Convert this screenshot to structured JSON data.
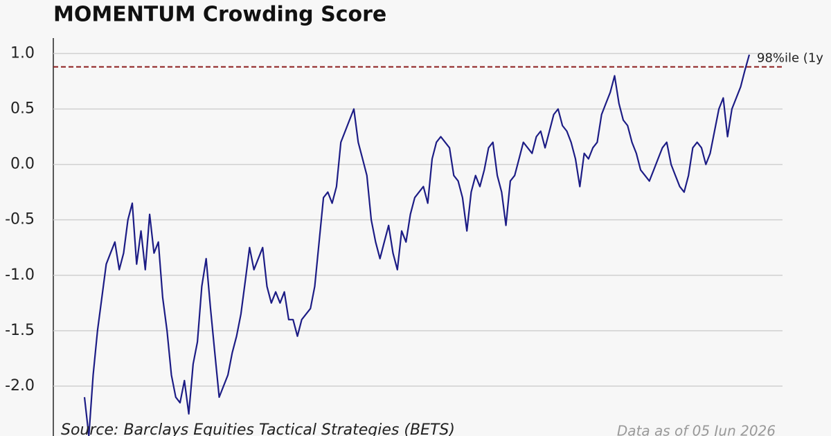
{
  "chart_data": {
    "type": "line",
    "title": "MOMENTUM Crowding Score",
    "series": [
      {
        "name": null,
        "color": "#1c1c85",
        "values": [
          -2.1,
          -2.45,
          -1.9,
          -1.5,
          -1.2,
          -0.9,
          -0.8,
          -0.7,
          -0.95,
          -0.8,
          -0.5,
          -0.35,
          -0.9,
          -0.6,
          -0.95,
          -0.45,
          -0.8,
          -0.7,
          -1.2,
          -1.5,
          -1.9,
          -2.1,
          -2.15,
          -1.95,
          -2.25,
          -1.8,
          -1.6,
          -1.1,
          -0.85,
          -1.3,
          -1.7,
          -2.1,
          -2.0,
          -1.9,
          -1.7,
          -1.55,
          -1.35,
          -1.05,
          -0.75,
          -0.95,
          -0.85,
          -0.75,
          -1.1,
          -1.25,
          -1.15,
          -1.25,
          -1.15,
          -1.4,
          -1.4,
          -1.55,
          -1.4,
          -1.35,
          -1.3,
          -1.1,
          -0.7,
          -0.3,
          -0.25,
          -0.35,
          -0.2,
          0.2,
          0.3,
          0.4,
          0.5,
          0.2,
          0.05,
          -0.1,
          -0.5,
          -0.7,
          -0.85,
          -0.7,
          -0.55,
          -0.8,
          -0.95,
          -0.6,
          -0.7,
          -0.45,
          -0.3,
          -0.25,
          -0.2,
          -0.35,
          0.05,
          0.2,
          0.25,
          0.2,
          0.15,
          -0.1,
          -0.15,
          -0.3,
          -0.6,
          -0.25,
          -0.1,
          -0.2,
          -0.05,
          0.15,
          0.2,
          -0.1,
          -0.25,
          -0.55,
          -0.15,
          -0.1,
          0.05,
          0.2,
          0.15,
          0.1,
          0.25,
          0.3,
          0.15,
          0.3,
          0.45,
          0.5,
          0.35,
          0.3,
          0.2,
          0.05,
          -0.2,
          0.1,
          0.05,
          0.15,
          0.2,
          0.45,
          0.55,
          0.65,
          0.8,
          0.55,
          0.4,
          0.35,
          0.2,
          0.1,
          -0.05,
          -0.1,
          -0.15,
          -0.05,
          0.05,
          0.15,
          0.2,
          0.0,
          -0.1,
          -0.2,
          -0.25,
          -0.1,
          0.15,
          0.2,
          0.15,
          0.0,
          0.1,
          0.3,
          0.5,
          0.6,
          0.25,
          0.5,
          0.6,
          0.7,
          0.85,
          0.99
        ]
      }
    ],
    "ylim": [
      -2.45,
      1.14
    ],
    "yticks": [
      {
        "value": 1,
        "label": "1.0"
      },
      {
        "value": 0.5,
        "label": "0.5"
      },
      {
        "value": 0,
        "label": "0.0"
      },
      {
        "value": -0.5,
        "label": "-0.5"
      },
      {
        "value": -1,
        "label": "-1.0"
      },
      {
        "value": -1.5,
        "label": "-1.5"
      },
      {
        "value": -2,
        "label": "-2.0"
      }
    ],
    "grid": true,
    "reference_line": {
      "value": 0.88,
      "label": "98%ile (1y",
      "color": "#8b1c1c"
    },
    "source": "Source: Barclays Equities Tactical Strategies (BETS)",
    "note": "Data as of 05 Jun 2026"
  }
}
